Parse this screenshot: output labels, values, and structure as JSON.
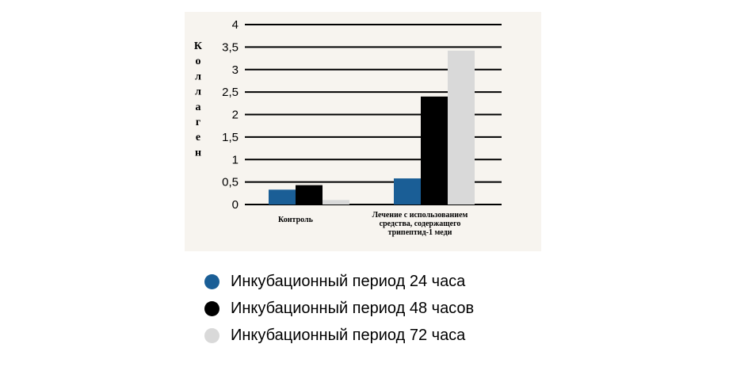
{
  "chart_data": {
    "type": "bar",
    "ylabel": "Коллаген",
    "ylim": [
      0,
      4
    ],
    "yticks": [
      "0",
      "0,5",
      "1",
      "1,5",
      "2",
      "2,5",
      "3",
      "3,5",
      "4"
    ],
    "categories": [
      [
        "Контроль"
      ],
      [
        "Лечение с использованием",
        "средства, содержащего",
        "трипептид-1 меди"
      ]
    ],
    "series": [
      {
        "name": "Инкубационный период 24 часа",
        "color": "#1a5e96",
        "values": [
          0.33,
          0.58
        ]
      },
      {
        "name": "Инкубационный период 48 часов",
        "color": "#000000",
        "values": [
          0.43,
          2.4
        ]
      },
      {
        "name": "Инкубационный период 72 часа",
        "color": "#d9d9d9",
        "values": [
          0.1,
          3.42
        ]
      }
    ],
    "grid": true,
    "legend_position": "bottom"
  }
}
